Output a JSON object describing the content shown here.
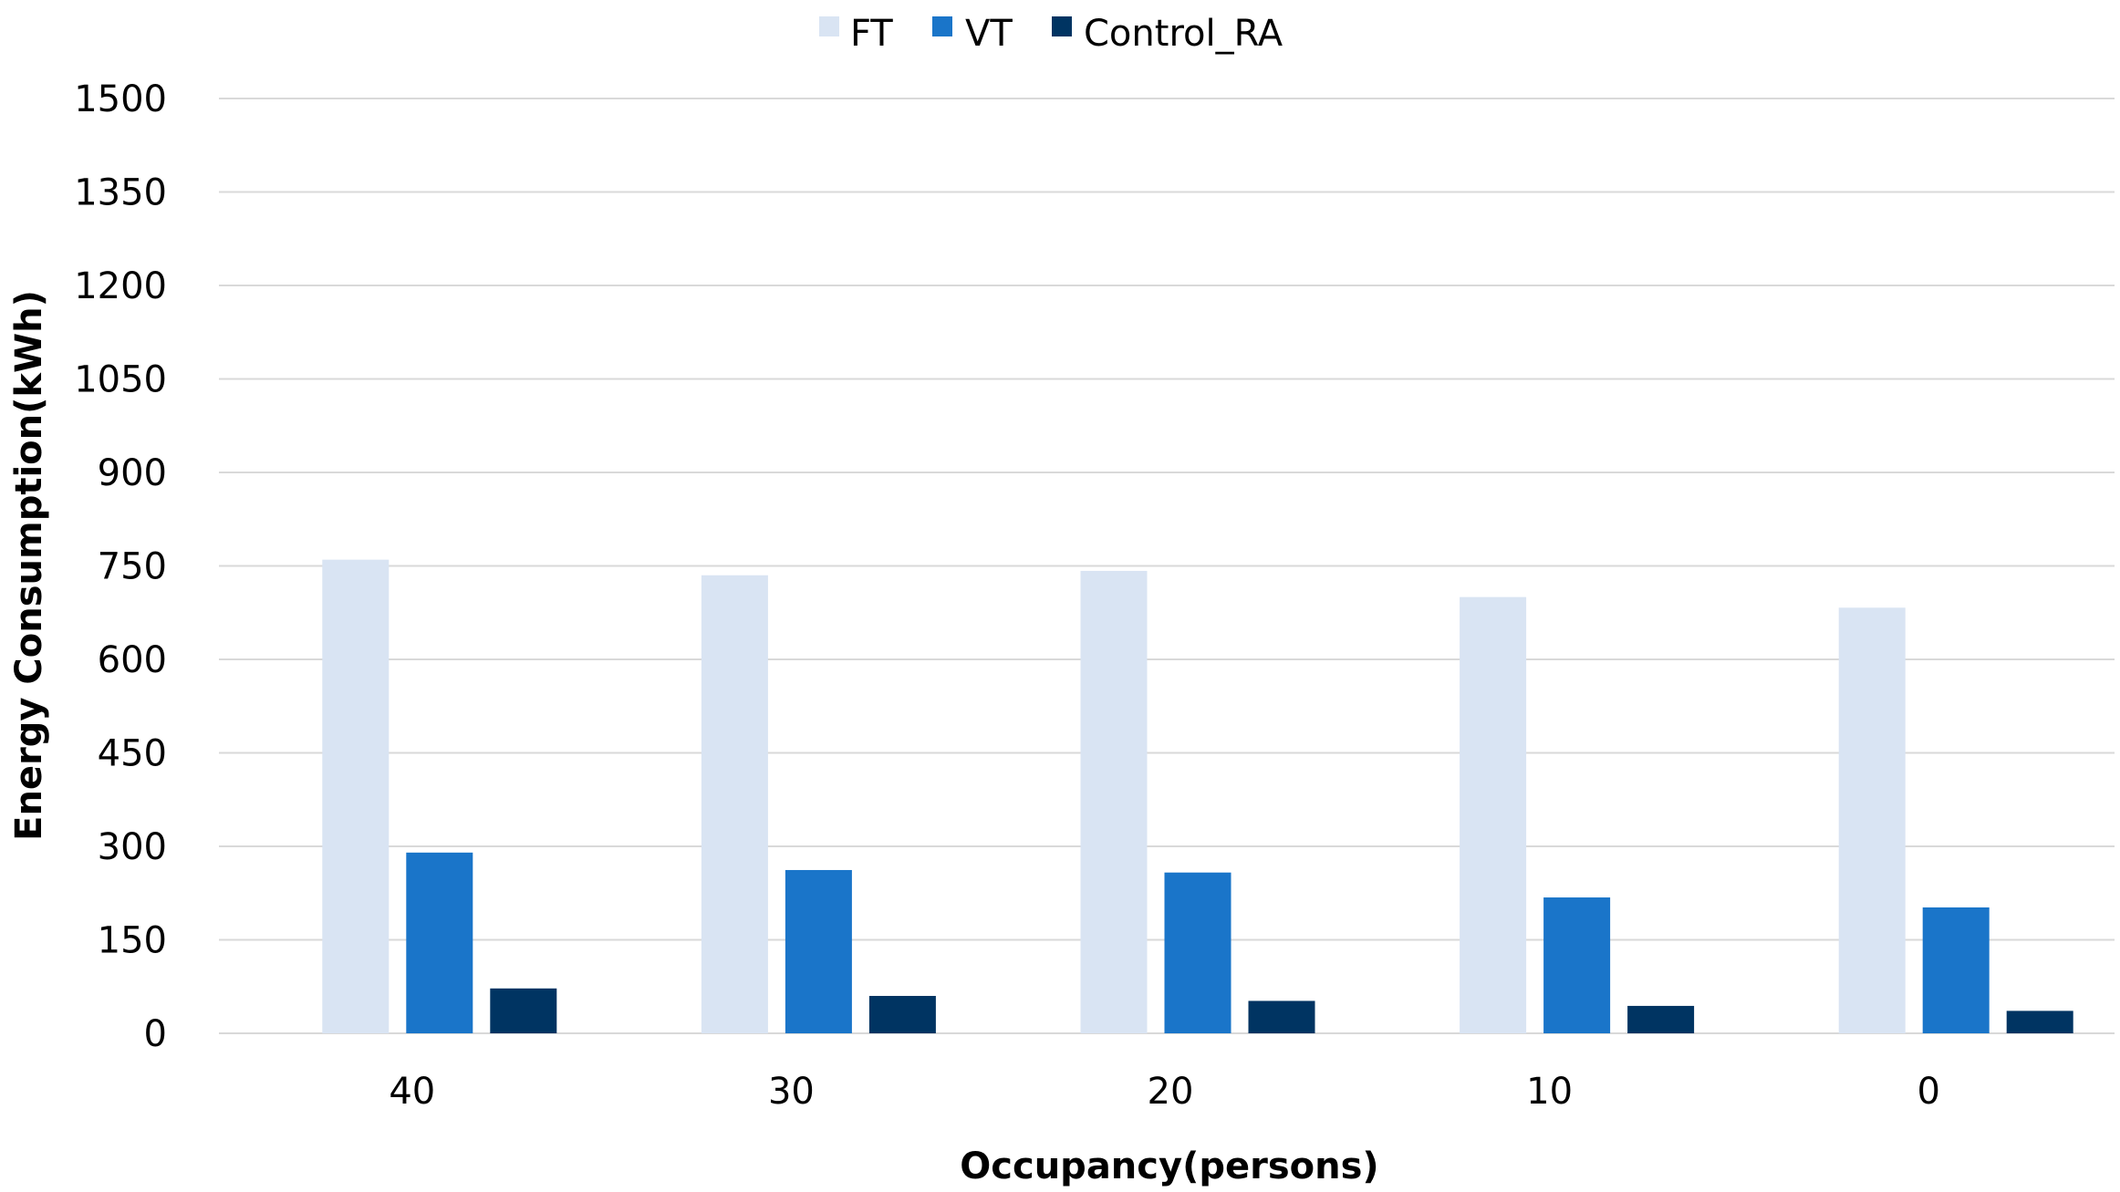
{
  "chart_data": {
    "type": "bar",
    "categories": [
      "40",
      "30",
      "20",
      "10",
      "0"
    ],
    "series": [
      {
        "name": "FT",
        "values": [
          760,
          735,
          742,
          700,
          683
        ],
        "color": "#d9e4f3"
      },
      {
        "name": "VT",
        "values": [
          290,
          262,
          258,
          218,
          202
        ],
        "color": "#1a75c9"
      },
      {
        "name": "Control_RA",
        "values": [
          72,
          60,
          52,
          44,
          36
        ],
        "color": "#003462"
      }
    ],
    "xlabel": "Occupancy(persons)",
    "ylabel": "Energy Consumption(kWh)",
    "ylim": [
      0,
      1500
    ],
    "yticks": [
      0,
      150,
      300,
      450,
      600,
      750,
      900,
      1050,
      1200,
      1350,
      1500
    ],
    "grid": true,
    "legend_position": "top-center",
    "gridline_color": "#d9d9d9"
  }
}
